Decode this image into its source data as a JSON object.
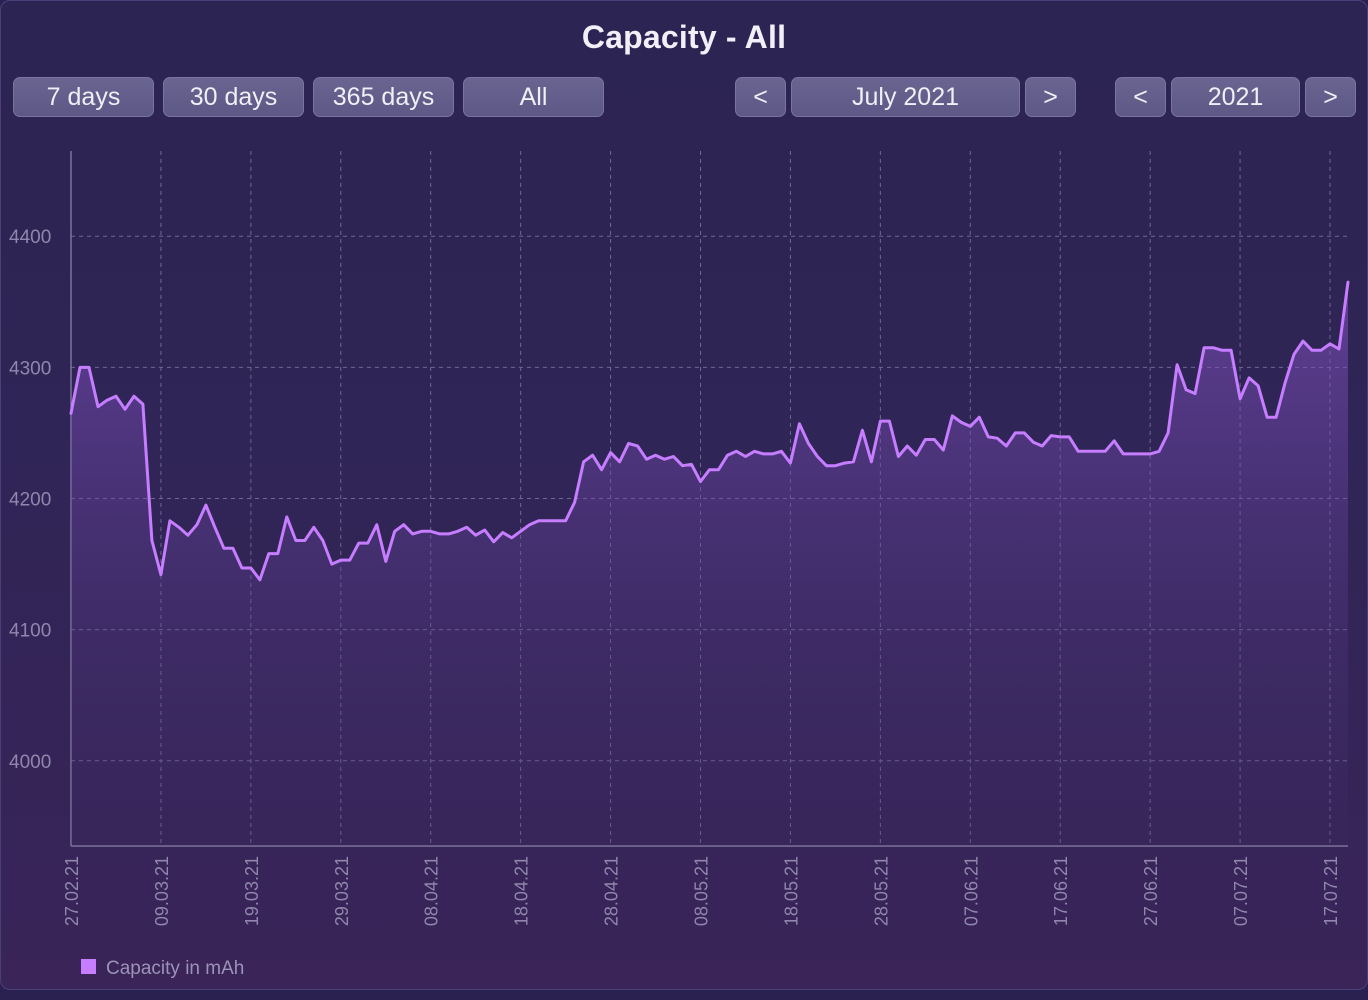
{
  "window": {
    "title": "Capacity - All"
  },
  "range_buttons": [
    "7 days",
    "30 days",
    "365 days",
    "All"
  ],
  "month_nav": {
    "prev": "<",
    "label": "July 2021",
    "next": ">"
  },
  "year_nav": {
    "prev": "<",
    "label": "2021",
    "next": ">"
  },
  "colors": {
    "line": "#c77dff",
    "background": "#2c2452",
    "button": "#625c8a"
  },
  "chart_data": {
    "type": "area",
    "title": "Capacity - All",
    "xlabel": "",
    "ylabel": "",
    "ylim": [
      3935,
      4465
    ],
    "yticks": [
      4000,
      4100,
      4200,
      4300,
      4400
    ],
    "x_tick_labels": [
      "27.02.21",
      "09.03.21",
      "19.03.21",
      "29.03.21",
      "08.04.21",
      "18.04.21",
      "28.04.21",
      "08.05.21",
      "18.05.21",
      "28.05.21",
      "07.06.21",
      "17.06.21",
      "27.06.21",
      "07.07.21",
      "17.07.21"
    ],
    "grid": true,
    "legend_position": "bottom-left",
    "series": [
      {
        "name": "Capacity in mAh",
        "color": "#c77dff",
        "points": [
          [
            "27.02.21",
            4265
          ],
          [
            "28.02.21",
            4300
          ],
          [
            "01.03.21",
            4300
          ],
          [
            "02.03.21",
            4270
          ],
          [
            "03.03.21",
            4275
          ],
          [
            "04.03.21",
            4278
          ],
          [
            "05.03.21",
            4268
          ],
          [
            "06.03.21",
            4278
          ],
          [
            "07.03.21",
            4272
          ],
          [
            "08.03.21",
            4168
          ],
          [
            "09.03.21",
            4142
          ],
          [
            "10.03.21",
            4183
          ],
          [
            "11.03.21",
            4178
          ],
          [
            "12.03.21",
            4172
          ],
          [
            "13.03.21",
            4180
          ],
          [
            "14.03.21",
            4195
          ],
          [
            "15.03.21",
            4178
          ],
          [
            "16.03.21",
            4162
          ],
          [
            "17.03.21",
            4162
          ],
          [
            "18.03.21",
            4147
          ],
          [
            "19.03.21",
            4147
          ],
          [
            "20.03.21",
            4138
          ],
          [
            "21.03.21",
            4158
          ],
          [
            "22.03.21",
            4158
          ],
          [
            "23.03.21",
            4186
          ],
          [
            "24.03.21",
            4168
          ],
          [
            "25.03.21",
            4168
          ],
          [
            "26.03.21",
            4178
          ],
          [
            "27.03.21",
            4168
          ],
          [
            "28.03.21",
            4150
          ],
          [
            "29.03.21",
            4153
          ],
          [
            "30.03.21",
            4153
          ],
          [
            "31.03.21",
            4166
          ],
          [
            "01.04.21",
            4166
          ],
          [
            "02.04.21",
            4180
          ],
          [
            "03.04.21",
            4152
          ],
          [
            "04.04.21",
            4175
          ],
          [
            "05.04.21",
            4180
          ],
          [
            "06.04.21",
            4173
          ],
          [
            "07.04.21",
            4175
          ],
          [
            "08.04.21",
            4175
          ],
          [
            "09.04.21",
            4173
          ],
          [
            "10.04.21",
            4173
          ],
          [
            "11.04.21",
            4175
          ],
          [
            "12.04.21",
            4178
          ],
          [
            "13.04.21",
            4172
          ],
          [
            "14.04.21",
            4176
          ],
          [
            "15.04.21",
            4167
          ],
          [
            "16.04.21",
            4174
          ],
          [
            "17.04.21",
            4170
          ],
          [
            "18.04.21",
            4175
          ],
          [
            "19.04.21",
            4180
          ],
          [
            "20.04.21",
            4183
          ],
          [
            "21.04.21",
            4183
          ],
          [
            "22.04.21",
            4183
          ],
          [
            "23.04.21",
            4183
          ],
          [
            "24.04.21",
            4197
          ],
          [
            "25.04.21",
            4228
          ],
          [
            "26.04.21",
            4233
          ],
          [
            "27.04.21",
            4222
          ],
          [
            "28.04.21",
            4235
          ],
          [
            "29.04.21",
            4228
          ],
          [
            "30.04.21",
            4242
          ],
          [
            "01.05.21",
            4240
          ],
          [
            "02.05.21",
            4230
          ],
          [
            "03.05.21",
            4233
          ],
          [
            "04.05.21",
            4230
          ],
          [
            "05.05.21",
            4232
          ],
          [
            "06.05.21",
            4225
          ],
          [
            "07.05.21",
            4226
          ],
          [
            "08.05.21",
            4213
          ],
          [
            "09.05.21",
            4222
          ],
          [
            "10.05.21",
            4222
          ],
          [
            "11.05.21",
            4233
          ],
          [
            "12.05.21",
            4236
          ],
          [
            "13.05.21",
            4232
          ],
          [
            "14.05.21",
            4236
          ],
          [
            "15.05.21",
            4234
          ],
          [
            "16.05.21",
            4234
          ],
          [
            "17.05.21",
            4236
          ],
          [
            "18.05.21",
            4227
          ],
          [
            "19.05.21",
            4257
          ],
          [
            "20.05.21",
            4242
          ],
          [
            "21.05.21",
            4232
          ],
          [
            "22.05.21",
            4225
          ],
          [
            "23.05.21",
            4225
          ],
          [
            "24.05.21",
            4227
          ],
          [
            "25.05.21",
            4228
          ],
          [
            "26.05.21",
            4252
          ],
          [
            "27.05.21",
            4228
          ],
          [
            "28.05.21",
            4259
          ],
          [
            "29.05.21",
            4259
          ],
          [
            "30.05.21",
            4232
          ],
          [
            "31.05.21",
            4240
          ],
          [
            "01.06.21",
            4233
          ],
          [
            "02.06.21",
            4245
          ],
          [
            "03.06.21",
            4245
          ],
          [
            "04.06.21",
            4237
          ],
          [
            "05.06.21",
            4263
          ],
          [
            "06.06.21",
            4258
          ],
          [
            "07.06.21",
            4255
          ],
          [
            "08.06.21",
            4262
          ],
          [
            "09.06.21",
            4247
          ],
          [
            "10.06.21",
            4246
          ],
          [
            "11.06.21",
            4240
          ],
          [
            "12.06.21",
            4250
          ],
          [
            "13.06.21",
            4250
          ],
          [
            "14.06.21",
            4243
          ],
          [
            "15.06.21",
            4240
          ],
          [
            "16.06.21",
            4248
          ],
          [
            "17.06.21",
            4247
          ],
          [
            "18.06.21",
            4247
          ],
          [
            "19.06.21",
            4236
          ],
          [
            "20.06.21",
            4236
          ],
          [
            "21.06.21",
            4236
          ],
          [
            "22.06.21",
            4236
          ],
          [
            "23.06.21",
            4244
          ],
          [
            "24.06.21",
            4234
          ],
          [
            "25.06.21",
            4234
          ],
          [
            "26.06.21",
            4234
          ],
          [
            "27.06.21",
            4234
          ],
          [
            "28.06.21",
            4236
          ],
          [
            "29.06.21",
            4250
          ],
          [
            "30.06.21",
            4302
          ],
          [
            "01.07.21",
            4283
          ],
          [
            "02.07.21",
            4280
          ],
          [
            "03.07.21",
            4315
          ],
          [
            "04.07.21",
            4315
          ],
          [
            "05.07.21",
            4313
          ],
          [
            "06.07.21",
            4313
          ],
          [
            "07.07.21",
            4276
          ],
          [
            "08.07.21",
            4292
          ],
          [
            "09.07.21",
            4286
          ],
          [
            "10.07.21",
            4262
          ],
          [
            "11.07.21",
            4262
          ],
          [
            "12.07.21",
            4288
          ],
          [
            "13.07.21",
            4310
          ],
          [
            "14.07.21",
            4320
          ],
          [
            "15.07.21",
            4313
          ],
          [
            "16.07.21",
            4313
          ],
          [
            "17.07.21",
            4318
          ],
          [
            "18.07.21",
            4314
          ],
          [
            "19.07.21",
            4365
          ]
        ]
      }
    ]
  }
}
